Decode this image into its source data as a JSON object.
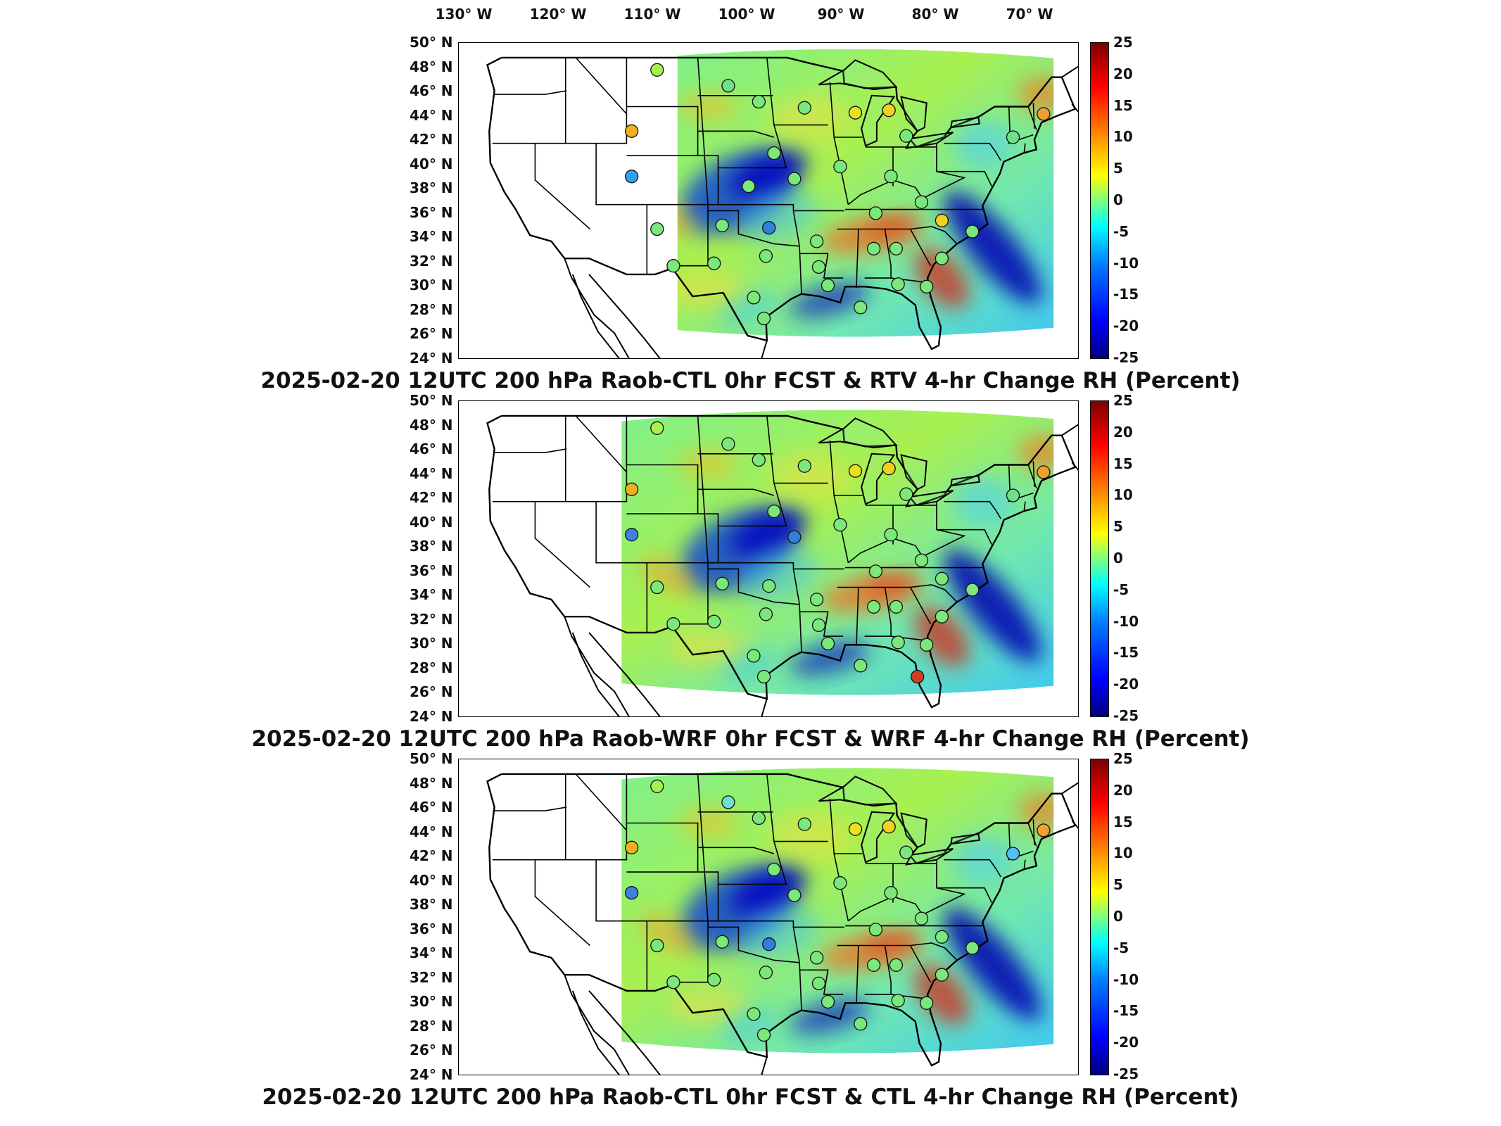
{
  "longitude_labels": [
    {
      "text": "130° W",
      "lon": -130
    },
    {
      "text": "120° W",
      "lon": -120
    },
    {
      "text": "110° W",
      "lon": -110
    },
    {
      "text": "100° W",
      "lon": -100
    },
    {
      "text": "90° W",
      "lon": -90
    },
    {
      "text": "80° W",
      "lon": -80
    },
    {
      "text": "70° W",
      "lon": -70
    }
  ],
  "latitude_labels": [
    "50° N",
    "48° N",
    "46° N",
    "44° N",
    "42° N",
    "40° N",
    "38° N",
    "36° N",
    "34° N",
    "32° N",
    "30° N",
    "28° N",
    "26° N",
    "24° N"
  ],
  "colorbar": {
    "ticks": [
      "25",
      "20",
      "15",
      "10",
      "5",
      "0",
      "-5",
      "-10",
      "-15",
      "-20",
      "-25"
    ],
    "range": [
      -25,
      25
    ],
    "colormap": "jet",
    "colors": [
      "#00007f",
      "#0000ff",
      "#007fff",
      "#00ffff",
      "#7fff7f",
      "#ffff00",
      "#ff7f00",
      "#ff0000",
      "#7f0000"
    ]
  },
  "panels": [
    {
      "title": "2025-02-20 12UTC 200 hPa Raob-CTL 0hr FCST & RTV 4-hr Change RH (Percent)",
      "model": "RTV",
      "stations": [
        [
          48,
          -108,
          "#a8f052"
        ],
        [
          46.7,
          -101,
          "#6ee08a"
        ],
        [
          45.4,
          -98,
          "#7ae87a"
        ],
        [
          44.9,
          -93.5,
          "#7ae87a"
        ],
        [
          44.5,
          -88.5,
          "#e8e020"
        ],
        [
          44.7,
          -85.2,
          "#f0d020"
        ],
        [
          43,
          -110.5,
          "#f0b020"
        ],
        [
          42.6,
          -83.5,
          "#7ae87a"
        ],
        [
          42.5,
          -73,
          "#6ee08a"
        ],
        [
          44.4,
          -70,
          "#f0a030"
        ],
        [
          41.2,
          -96.5,
          "#7ae87a"
        ],
        [
          40.1,
          -90,
          "#7ae87a"
        ],
        [
          39.3,
          -110.5,
          "#30a0f0"
        ],
        [
          39.1,
          -94.5,
          "#7ae87a"
        ],
        [
          39.3,
          -85,
          "#7ae87a"
        ],
        [
          38.5,
          -99,
          "#7ae87a"
        ],
        [
          37.2,
          -82,
          "#7ae87a"
        ],
        [
          36.3,
          -86.5,
          "#7ae87a"
        ],
        [
          35.7,
          -80,
          "#f0d020"
        ],
        [
          35.1,
          -97,
          "#3080e0"
        ],
        [
          35.3,
          -101.6,
          "#7ae87a"
        ],
        [
          35,
          -108,
          "#7ae87a"
        ],
        [
          34.8,
          -77,
          "#7ae87a"
        ],
        [
          34.0,
          -92.3,
          "#7ae87a"
        ],
        [
          33.4,
          -86.7,
          "#7ae87a"
        ],
        [
          33.4,
          -84.5,
          "#7ae87a"
        ],
        [
          32.8,
          -97.3,
          "#7ae87a"
        ],
        [
          32.2,
          -102.4,
          "#7ae87a"
        ],
        [
          32.0,
          -106.4,
          "#7ae87a"
        ],
        [
          32.6,
          -80,
          "#7ae87a"
        ],
        [
          30.5,
          -84.3,
          "#7ae87a"
        ],
        [
          30.3,
          -81.5,
          "#7ae87a"
        ],
        [
          29.4,
          -98.5,
          "#7ae87a"
        ],
        [
          28.6,
          -88,
          "#7ae87a"
        ],
        [
          27.7,
          -97.5,
          "#7ae87a"
        ],
        [
          30.4,
          -91.2,
          "#7ae87a"
        ],
        [
          31.9,
          -92.1,
          "#7ae87a"
        ]
      ]
    },
    {
      "title": "2025-02-20 12UTC 200 hPa Raob-WRF 0hr FCST & WRF 4-hr Change RH (Percent)",
      "model": "WRF",
      "stations": [
        [
          48,
          -108,
          "#a8f052"
        ],
        [
          46.7,
          -101,
          "#7ae87a"
        ],
        [
          45.4,
          -98,
          "#7ae87a"
        ],
        [
          44.9,
          -93.5,
          "#7ae87a"
        ],
        [
          44.5,
          -88.5,
          "#e8e020"
        ],
        [
          44.7,
          -85.2,
          "#f0d020"
        ],
        [
          43,
          -110.5,
          "#f0b020"
        ],
        [
          42.6,
          -83.5,
          "#7ae87a"
        ],
        [
          42.5,
          -73,
          "#6ee08a"
        ],
        [
          44.4,
          -70,
          "#f0a030"
        ],
        [
          41.2,
          -96.5,
          "#7ae87a"
        ],
        [
          40.1,
          -90,
          "#7ae87a"
        ],
        [
          39.3,
          -110.5,
          "#4080e0"
        ],
        [
          39.1,
          -94.5,
          "#3080e0"
        ],
        [
          39.3,
          -85,
          "#7ae87a"
        ],
        [
          37.2,
          -82,
          "#7ae87a"
        ],
        [
          36.3,
          -86.5,
          "#7ae87a"
        ],
        [
          35.7,
          -80,
          "#7ae87a"
        ],
        [
          35.1,
          -97,
          "#7ae87a"
        ],
        [
          35.3,
          -101.6,
          "#7ae87a"
        ],
        [
          35,
          -108,
          "#7ae87a"
        ],
        [
          34.8,
          -77,
          "#7ae87a"
        ],
        [
          34.0,
          -92.3,
          "#7ae87a"
        ],
        [
          33.4,
          -86.7,
          "#7ae87a"
        ],
        [
          33.4,
          -84.5,
          "#7ae87a"
        ],
        [
          32.8,
          -97.3,
          "#7ae87a"
        ],
        [
          32.2,
          -102.4,
          "#7ae87a"
        ],
        [
          32.0,
          -106.4,
          "#7ae87a"
        ],
        [
          32.6,
          -80,
          "#7ae87a"
        ],
        [
          30.5,
          -84.3,
          "#7ae87a"
        ],
        [
          30.3,
          -81.5,
          "#7ae87a"
        ],
        [
          29.4,
          -98.5,
          "#7ae87a"
        ],
        [
          28.6,
          -88,
          "#7ae87a"
        ],
        [
          27.7,
          -97.5,
          "#7ae87a"
        ],
        [
          27.7,
          -82.4,
          "#d04020"
        ],
        [
          30.4,
          -91.2,
          "#7ae87a"
        ],
        [
          31.9,
          -92.1,
          "#7ae87a"
        ]
      ]
    },
    {
      "title": "2025-02-20 12UTC 200 hPa Raob-CTL 0hr FCST & CTL 4-hr Change RH (Percent)",
      "model": "CTL",
      "stations": [
        [
          48,
          -108,
          "#a8f052"
        ],
        [
          46.7,
          -101,
          "#6ee0d0"
        ],
        [
          45.4,
          -98,
          "#7ae87a"
        ],
        [
          44.9,
          -93.5,
          "#7ae87a"
        ],
        [
          44.5,
          -88.5,
          "#e8e020"
        ],
        [
          44.7,
          -85.2,
          "#f0d020"
        ],
        [
          43,
          -110.5,
          "#f0b020"
        ],
        [
          42.6,
          -83.5,
          "#7ae87a"
        ],
        [
          42.5,
          -73,
          "#50c0f0"
        ],
        [
          44.4,
          -70,
          "#f0a030"
        ],
        [
          41.2,
          -96.5,
          "#7ae87a"
        ],
        [
          40.1,
          -90,
          "#7ae87a"
        ],
        [
          39.3,
          -110.5,
          "#4080e0"
        ],
        [
          39.1,
          -94.5,
          "#7ae87a"
        ],
        [
          39.3,
          -85,
          "#7ae87a"
        ],
        [
          37.2,
          -82,
          "#7ae87a"
        ],
        [
          36.3,
          -86.5,
          "#7ae87a"
        ],
        [
          35.7,
          -80,
          "#7ae87a"
        ],
        [
          35.1,
          -97,
          "#3080e0"
        ],
        [
          35.3,
          -101.6,
          "#7ae87a"
        ],
        [
          35,
          -108,
          "#7ae87a"
        ],
        [
          34.8,
          -77,
          "#7ae87a"
        ],
        [
          34.0,
          -92.3,
          "#7ae87a"
        ],
        [
          33.4,
          -86.7,
          "#7ae87a"
        ],
        [
          33.4,
          -84.5,
          "#7ae87a"
        ],
        [
          32.8,
          -97.3,
          "#7ae87a"
        ],
        [
          32.2,
          -102.4,
          "#7ae87a"
        ],
        [
          32.0,
          -106.4,
          "#7ae87a"
        ],
        [
          32.6,
          -80,
          "#7ae87a"
        ],
        [
          30.5,
          -84.3,
          "#7ae87a"
        ],
        [
          30.3,
          -81.5,
          "#7ae87a"
        ],
        [
          29.4,
          -98.5,
          "#7ae87a"
        ],
        [
          28.6,
          -88,
          "#7ae87a"
        ],
        [
          27.7,
          -97.5,
          "#7ae87a"
        ],
        [
          30.4,
          -91.2,
          "#7ae87a"
        ],
        [
          31.9,
          -92.1,
          "#7ae87a"
        ]
      ]
    }
  ]
}
